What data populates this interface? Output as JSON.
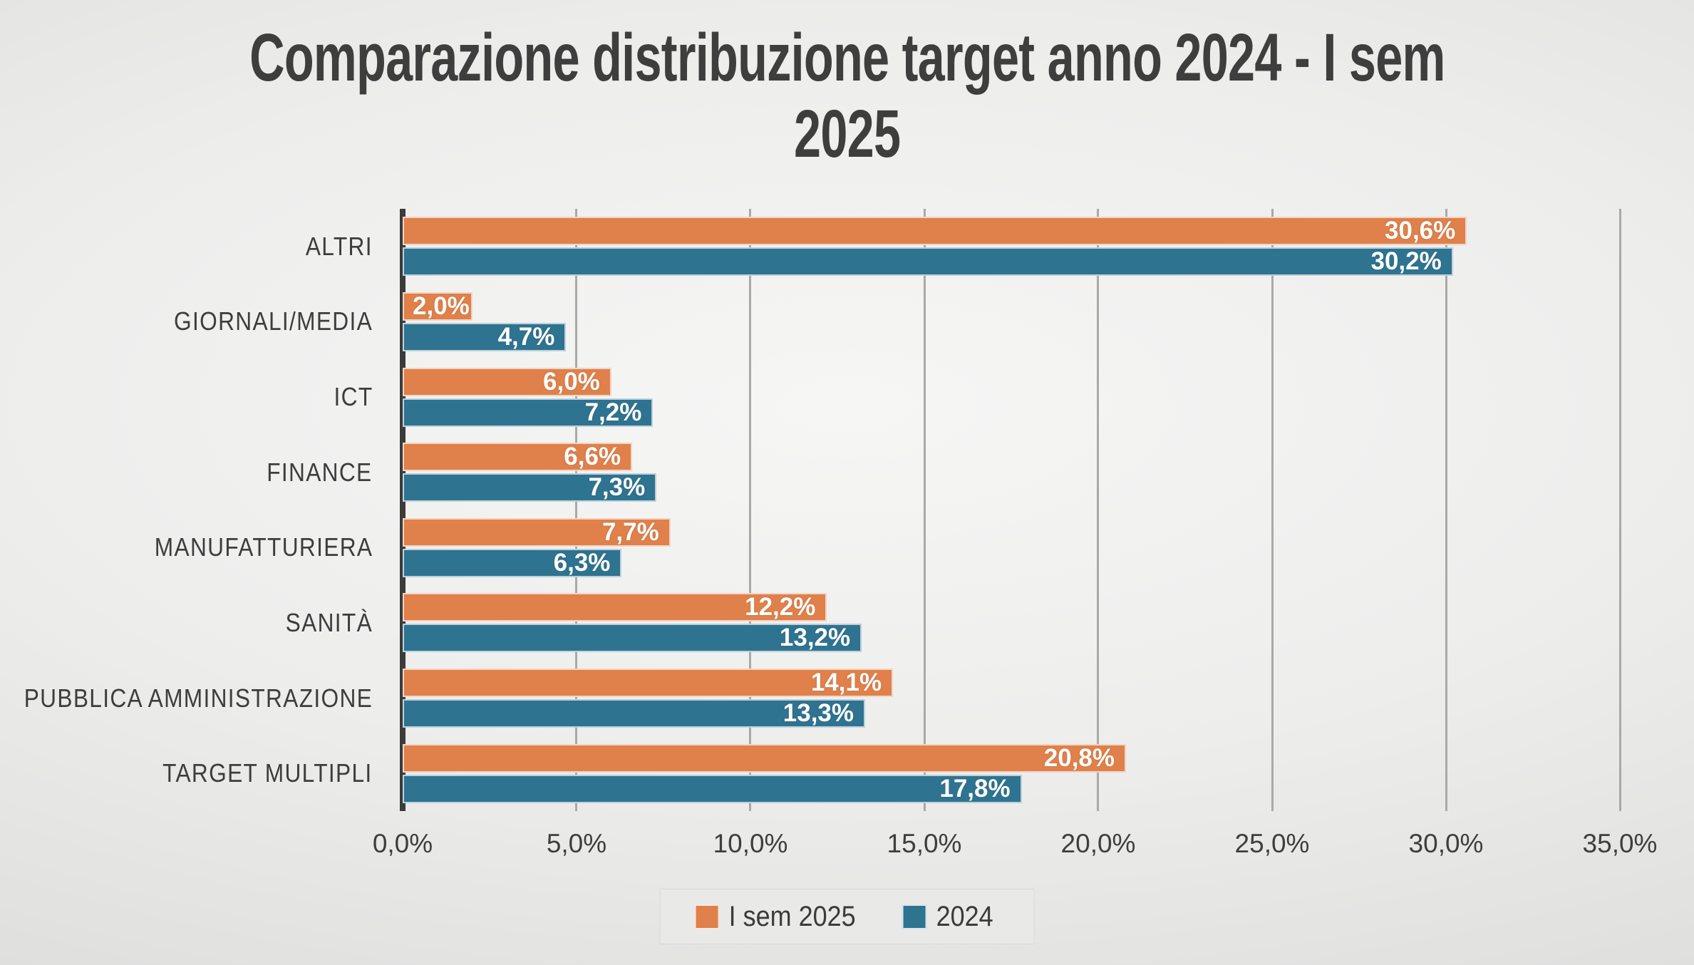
{
  "title": {
    "line1": "Comparazione distribuzione target anno 2024 - I sem",
    "line2": "2025"
  },
  "colors": {
    "series_2025": "#E0804A",
    "series_2024": "#2E7390",
    "axis_line": "#3B3B3B",
    "gridline": "#A9A9A8",
    "title_text": "#3E3E3E",
    "value_text": "#FFFFFF",
    "legend_bg": "#E9E9E8"
  },
  "chart_data": {
    "type": "bar",
    "orientation": "horizontal",
    "title": "Comparazione distribuzione target anno 2024 - I sem 2025",
    "categories": [
      "ALTRI",
      "GIORNALI/MEDIA",
      "ICT",
      "FINANCE",
      "MANUFATTURIERA",
      "SANITÀ",
      "PUBBLICA AMMINISTRAZIONE",
      "TARGET MULTIPLI"
    ],
    "series": [
      {
        "name": "I sem 2025",
        "color": "#E0804A",
        "values": [
          30.6,
          2.0,
          6.0,
          6.6,
          7.7,
          12.2,
          14.1,
          20.8
        ],
        "labels": [
          "30,6%",
          "2,0%",
          "6,0%",
          "6,6%",
          "7,7%",
          "12,2%",
          "14,1%",
          "20,8%"
        ]
      },
      {
        "name": "2024",
        "color": "#2E7390",
        "values": [
          30.2,
          4.7,
          7.2,
          7.3,
          6.3,
          13.2,
          13.3,
          17.8
        ],
        "labels": [
          "30,2%",
          "4,7%",
          "7,2%",
          "7,3%",
          "6,3%",
          "13,2%",
          "13,3%",
          "17,8%"
        ]
      }
    ],
    "x_axis": {
      "min": 0,
      "max": 35,
      "step": 5,
      "tick_labels": [
        "0,0%",
        "5,0%",
        "10,0%",
        "15,0%",
        "20,0%",
        "25,0%",
        "30,0%",
        "35,0%"
      ]
    },
    "grid": true,
    "value_labels": "inside-end, white bold",
    "legend": {
      "position": "bottom",
      "items": [
        {
          "label": "I sem 2025",
          "color": "#E0804A"
        },
        {
          "label": "2024",
          "color": "#2E7390"
        }
      ]
    }
  }
}
